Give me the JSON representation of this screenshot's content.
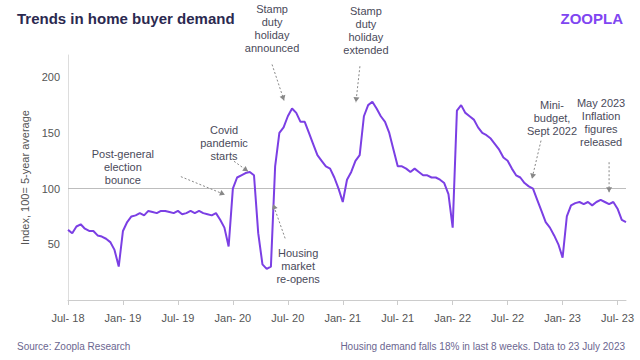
{
  "chart_data": {
    "type": "line",
    "title": "Trends in home buyer demand",
    "logo": "ZOOPLA",
    "y_label": "Index, 100= 5-year average",
    "source": "Source: Zoopla Research",
    "note": "Housing demand falls 18% in last 8 weeks. Data to 23 July 2023",
    "color": "#7b3fe4",
    "grid": false,
    "ylim": [
      0,
      220
    ],
    "yticks": [
      50,
      100,
      150,
      200
    ],
    "baseline": 100,
    "categories": [
      "Jul- 18",
      null,
      null,
      null,
      null,
      null,
      null,
      null,
      null,
      null,
      null,
      null,
      null,
      "Jan- 19",
      null,
      null,
      null,
      null,
      null,
      null,
      null,
      null,
      null,
      null,
      null,
      null,
      "Jul- 19",
      null,
      null,
      null,
      null,
      null,
      null,
      null,
      null,
      null,
      null,
      null,
      null,
      "Jan- 20",
      null,
      null,
      null,
      null,
      null,
      null,
      null,
      null,
      null,
      null,
      null,
      null,
      "Jul- 20",
      null,
      null,
      null,
      null,
      null,
      null,
      null,
      null,
      null,
      null,
      null,
      null,
      "Jan- 21",
      null,
      null,
      null,
      null,
      null,
      null,
      null,
      null,
      null,
      null,
      null,
      null,
      "Jul- 21",
      null,
      null,
      null,
      null,
      null,
      null,
      null,
      null,
      null,
      null,
      null,
      null,
      "Jan- 22",
      null,
      null,
      null,
      null,
      null,
      null,
      null,
      null,
      null,
      null,
      null,
      null,
      "Jul- 22",
      null,
      null,
      null,
      null,
      null,
      null,
      null,
      null,
      null,
      null,
      null,
      null,
      "Jan- 23",
      null,
      null,
      null,
      null,
      null,
      null,
      null,
      null,
      null,
      null,
      null,
      null,
      "Jul- 23",
      null,
      null
    ],
    "values": [
      63,
      60,
      66,
      68,
      64,
      62,
      62,
      58,
      57,
      55,
      52,
      45,
      30,
      62,
      70,
      75,
      76,
      78,
      76,
      80,
      79,
      78,
      80,
      80,
      79,
      78,
      80,
      77,
      78,
      80,
      78,
      80,
      78,
      77,
      76,
      78,
      72,
      65,
      48,
      100,
      110,
      112,
      114,
      115,
      112,
      60,
      32,
      28,
      30,
      120,
      150,
      155,
      165,
      172,
      168,
      160,
      160,
      150,
      140,
      130,
      125,
      120,
      118,
      110,
      100,
      88,
      108,
      115,
      125,
      130,
      165,
      175,
      178,
      172,
      165,
      160,
      150,
      135,
      120,
      120,
      118,
      115,
      118,
      115,
      112,
      112,
      110,
      110,
      108,
      105,
      95,
      65,
      170,
      175,
      168,
      165,
      162,
      155,
      150,
      148,
      145,
      140,
      135,
      128,
      125,
      118,
      112,
      110,
      105,
      102,
      100,
      90,
      80,
      70,
      65,
      58,
      50,
      38,
      75,
      85,
      87,
      88,
      86,
      88,
      85,
      88,
      90,
      88,
      86,
      88,
      82,
      72,
      70
    ],
    "annotations": [
      {
        "text": "Post-general\nelection\nbounce",
        "point": 39
      },
      {
        "text": "Covid\npandemic\nstarts",
        "point": 44
      },
      {
        "text": "Stamp\nduty\nholiday\nannounced",
        "point": 53
      },
      {
        "text": "Housing\nmarket\nre-opens",
        "point": 49
      },
      {
        "text": "Stamp\nduty\nholiday\nextended",
        "point": 70
      },
      {
        "text": "Mini-\nbudget,\nSept 2022",
        "point": 110
      },
      {
        "text": "May 2023\nInflation\nfigures\nreleased",
        "point": 128
      }
    ]
  }
}
